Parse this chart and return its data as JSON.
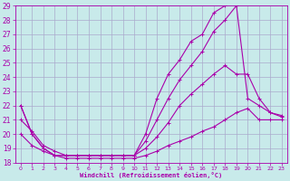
{
  "xlabel": "Windchill (Refroidissement éolien,°C)",
  "bg_color": "#c8eaea",
  "line_color": "#aa00aa",
  "grid_color": "#aaaacc",
  "xlim": [
    -0.5,
    23.5
  ],
  "ylim": [
    18,
    29
  ],
  "xticks": [
    0,
    1,
    2,
    3,
    4,
    5,
    6,
    7,
    8,
    9,
    10,
    11,
    12,
    13,
    14,
    15,
    16,
    17,
    18,
    19,
    20,
    21,
    22,
    23
  ],
  "yticks": [
    18,
    19,
    20,
    21,
    22,
    23,
    24,
    25,
    26,
    27,
    28,
    29
  ],
  "series": [
    {
      "x": [
        0,
        1,
        2,
        3,
        4,
        5,
        6,
        7,
        8,
        9,
        10,
        11,
        12,
        13,
        14,
        15,
        16,
        17,
        18
      ],
      "y": [
        22,
        20,
        19,
        18.5,
        18.5,
        18.5,
        18.5,
        18.5,
        18.5,
        18.5,
        18.5,
        20,
        22.5,
        24.2,
        25.2,
        26.5,
        27.0,
        28.5,
        29.0
      ]
    },
    {
      "x": [
        0,
        1,
        2,
        3,
        4,
        5,
        6,
        7,
        8,
        9,
        10,
        11,
        12,
        13,
        14,
        15,
        16,
        17,
        18,
        19,
        20,
        21,
        22,
        23
      ],
      "y": [
        22,
        20,
        19,
        18.5,
        18.5,
        18.5,
        18.5,
        18.5,
        18.5,
        18.5,
        18.5,
        19.5,
        21,
        22.5,
        23.8,
        24.8,
        25.8,
        27.2,
        28.0,
        29.0,
        22.5,
        22.0,
        21.5,
        21.2
      ]
    },
    {
      "x": [
        0,
        1,
        2,
        3,
        4,
        5,
        6,
        7,
        8,
        9,
        10,
        11,
        12,
        13,
        14,
        15,
        16,
        17,
        18,
        19,
        20,
        21,
        22,
        23
      ],
      "y": [
        21,
        20.2,
        19.2,
        18.8,
        18.5,
        18.5,
        18.5,
        18.5,
        18.5,
        18.5,
        18.5,
        19.0,
        19.8,
        20.8,
        22.0,
        22.8,
        23.5,
        24.2,
        24.8,
        24.2,
        24.2,
        22.5,
        21.5,
        21.3
      ]
    },
    {
      "x": [
        0,
        1,
        2,
        3,
        4,
        5,
        6,
        7,
        8,
        9,
        10,
        11,
        12,
        13,
        14,
        15,
        16,
        17,
        18,
        19,
        20,
        21,
        22,
        23
      ],
      "y": [
        20,
        19.2,
        18.8,
        18.5,
        18.3,
        18.3,
        18.3,
        18.3,
        18.3,
        18.3,
        18.3,
        18.5,
        18.8,
        19.2,
        19.5,
        19.8,
        20.2,
        20.5,
        21.0,
        21.5,
        21.8,
        21.0,
        21.0,
        21.0
      ]
    }
  ]
}
